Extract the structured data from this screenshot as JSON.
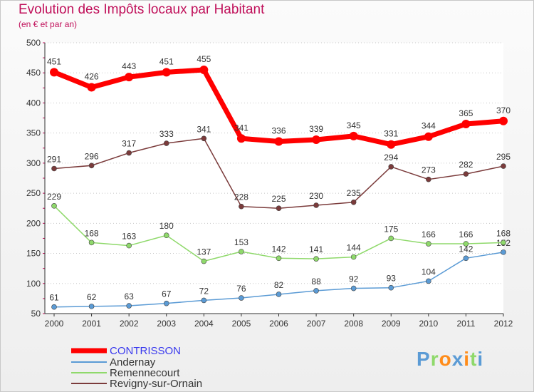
{
  "chart_data": {
    "type": "line",
    "title": "Evolution des Impôts locaux par Habitant",
    "subtitle": "(en € et par an)",
    "categories": [
      "2000",
      "2001",
      "2002",
      "2003",
      "2004",
      "2005",
      "2006",
      "2007",
      "2008",
      "2009",
      "2010",
      "2011",
      "2012"
    ],
    "ylim": [
      50,
      500
    ],
    "yticks": [
      50,
      100,
      150,
      200,
      250,
      300,
      350,
      400,
      450,
      500
    ],
    "grid": "horizontal dotted",
    "legend_position": "bottom-left",
    "series": [
      {
        "name": "CONTRISSON",
        "color": "#ff0000",
        "values": [
          451,
          426,
          443,
          451,
          455,
          341,
          336,
          339,
          345,
          331,
          344,
          365,
          370
        ]
      },
      {
        "name": "Andernay",
        "color": "#5b9bd5",
        "values": [
          61,
          62,
          63,
          67,
          72,
          76,
          82,
          88,
          92,
          93,
          104,
          142,
          152
        ]
      },
      {
        "name": "Remennecourt",
        "color": "#8fd96b",
        "values": [
          229,
          168,
          163,
          180,
          137,
          153,
          142,
          141,
          144,
          175,
          166,
          166,
          168
        ]
      },
      {
        "name": "Revigny-sur-Ornain",
        "color": "#7b3b3b",
        "values": [
          291,
          296,
          317,
          333,
          341,
          228,
          225,
          230,
          235,
          294,
          273,
          282,
          295
        ]
      }
    ]
  },
  "logo": {
    "text": "Proxiti",
    "colors": [
      "#5b9bd5",
      "#8fd96b",
      "#ff8c1a",
      "#5b9bd5",
      "#ff8c1a",
      "#8fd96b",
      "#5b9bd5"
    ]
  }
}
